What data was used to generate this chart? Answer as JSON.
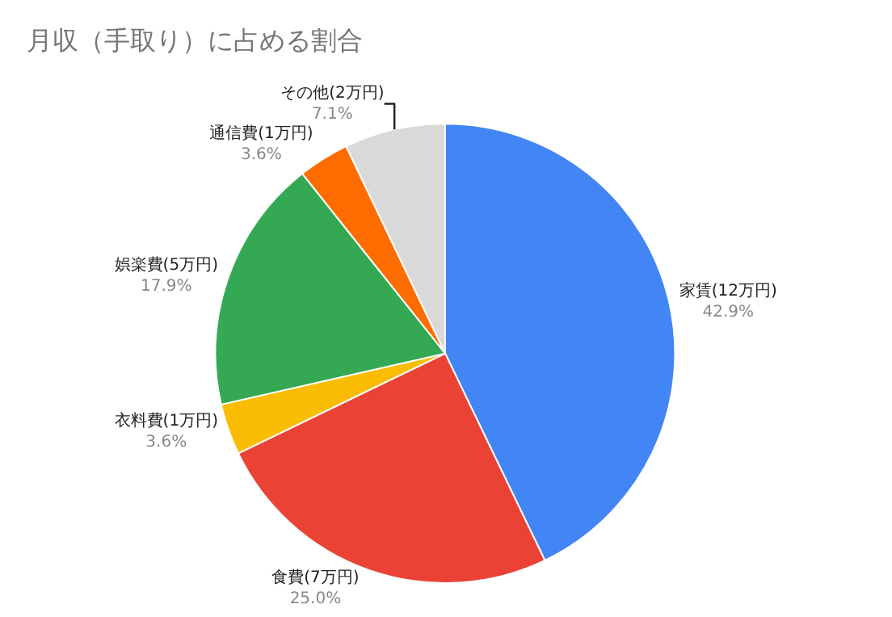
{
  "chart_data": {
    "type": "pie",
    "title": "月収（手取り）に占める割合",
    "categories": [
      "家賃(12万円)",
      "食費(7万円)",
      "衣料費(1万円)",
      "娯楽費(5万円)",
      "通信費(1万円)",
      "その他(2万円)"
    ],
    "values": [
      42.9,
      25.0,
      3.6,
      17.9,
      3.6,
      7.1
    ],
    "value_labels": [
      "42.9%",
      "25.0%",
      "3.6%",
      "17.9%",
      "3.6%",
      "7.1%"
    ],
    "colors": [
      "#4285f4",
      "#ea4335",
      "#fbbc04",
      "#34a853",
      "#ff6d01",
      "#d9d9d9"
    ],
    "legend": false
  }
}
